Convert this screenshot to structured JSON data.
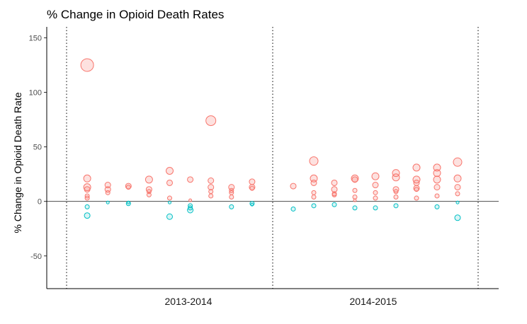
{
  "chart_data": {
    "type": "scatter",
    "title": "% Change in Opioid Death Rates",
    "xlabel": "",
    "ylabel": "% Change in Opioid Death Rate",
    "ylim": [
      -80,
      160
    ],
    "yticks": [
      -50,
      0,
      50,
      100,
      150
    ],
    "grid": false,
    "categories": [
      "2013-2014",
      "2014-2015"
    ],
    "colors": {
      "increase": "#F8766D",
      "decrease": "#00BFC4"
    },
    "points": [
      {
        "g": 0,
        "x": 1,
        "y": 125,
        "s": 9
      },
      {
        "g": 0,
        "x": 1,
        "y": 21,
        "s": 5
      },
      {
        "g": 0,
        "x": 1,
        "y": 13,
        "s": 5
      },
      {
        "g": 0,
        "x": 1,
        "y": 11,
        "s": 4
      },
      {
        "g": 0,
        "x": 1,
        "y": 5,
        "s": 3
      },
      {
        "g": 0,
        "x": 1,
        "y": 3,
        "s": 3
      },
      {
        "g": 0,
        "x": 1,
        "y": -5,
        "s": 3
      },
      {
        "g": 0,
        "x": 1,
        "y": -13,
        "s": 4
      },
      {
        "g": 0,
        "x": 2,
        "y": 15,
        "s": 4
      },
      {
        "g": 0,
        "x": 2,
        "y": 11,
        "s": 4
      },
      {
        "g": 0,
        "x": 2,
        "y": 8,
        "s": 3
      },
      {
        "g": 0,
        "x": 2,
        "y": -1,
        "s": 2
      },
      {
        "g": 0,
        "x": 3,
        "y": 14,
        "s": 4
      },
      {
        "g": 0,
        "x": 3,
        "y": 13,
        "s": 3
      },
      {
        "g": 0,
        "x": 3,
        "y": -1,
        "s": 2
      },
      {
        "g": 0,
        "x": 3,
        "y": -2,
        "s": 3
      },
      {
        "g": 0,
        "x": 4,
        "y": 20,
        "s": 5
      },
      {
        "g": 0,
        "x": 4,
        "y": 11,
        "s": 4
      },
      {
        "g": 0,
        "x": 4,
        "y": 9,
        "s": 3
      },
      {
        "g": 0,
        "x": 4,
        "y": 6,
        "s": 3
      },
      {
        "g": 0,
        "x": 5,
        "y": 28,
        "s": 5
      },
      {
        "g": 0,
        "x": 5,
        "y": 17,
        "s": 4
      },
      {
        "g": 0,
        "x": 5,
        "y": 3,
        "s": 3
      },
      {
        "g": 0,
        "x": 5,
        "y": -1,
        "s": 2
      },
      {
        "g": 0,
        "x": 5,
        "y": -14,
        "s": 4
      },
      {
        "g": 0,
        "x": 6,
        "y": 20,
        "s": 4
      },
      {
        "g": 0,
        "x": 6,
        "y": 1,
        "s": 2
      },
      {
        "g": 0,
        "x": 6,
        "y": -4,
        "s": 3
      },
      {
        "g": 0,
        "x": 6,
        "y": -6,
        "s": 3
      },
      {
        "g": 0,
        "x": 6,
        "y": -8,
        "s": 4
      },
      {
        "g": 0,
        "x": 7,
        "y": 74,
        "s": 7
      },
      {
        "g": 0,
        "x": 7,
        "y": 19,
        "s": 4
      },
      {
        "g": 0,
        "x": 7,
        "y": 13,
        "s": 4
      },
      {
        "g": 0,
        "x": 7,
        "y": 9,
        "s": 3
      },
      {
        "g": 0,
        "x": 7,
        "y": 5,
        "s": 3
      },
      {
        "g": 0,
        "x": 8,
        "y": 13,
        "s": 4
      },
      {
        "g": 0,
        "x": 8,
        "y": 10,
        "s": 3
      },
      {
        "g": 0,
        "x": 8,
        "y": 8,
        "s": 3
      },
      {
        "g": 0,
        "x": 8,
        "y": 4,
        "s": 3
      },
      {
        "g": 0,
        "x": 8,
        "y": -5,
        "s": 3
      },
      {
        "g": 0,
        "x": 9,
        "y": 18,
        "s": 4
      },
      {
        "g": 0,
        "x": 9,
        "y": 13,
        "s": 4
      },
      {
        "g": 0,
        "x": 9,
        "y": 12,
        "s": 3
      },
      {
        "g": 0,
        "x": 9,
        "y": -2,
        "s": 3
      },
      {
        "g": 0,
        "x": 9,
        "y": -3,
        "s": 2
      },
      {
        "g": 1,
        "x": 1,
        "y": 14,
        "s": 4
      },
      {
        "g": 1,
        "x": 1,
        "y": -7,
        "s": 3
      },
      {
        "g": 1,
        "x": 2,
        "y": 37,
        "s": 6
      },
      {
        "g": 1,
        "x": 2,
        "y": 21,
        "s": 5
      },
      {
        "g": 1,
        "x": 2,
        "y": 17,
        "s": 4
      },
      {
        "g": 1,
        "x": 2,
        "y": 8,
        "s": 3
      },
      {
        "g": 1,
        "x": 2,
        "y": 4,
        "s": 3
      },
      {
        "g": 1,
        "x": 2,
        "y": -4,
        "s": 3
      },
      {
        "g": 1,
        "x": 3,
        "y": 17,
        "s": 4
      },
      {
        "g": 1,
        "x": 3,
        "y": 11,
        "s": 4
      },
      {
        "g": 1,
        "x": 3,
        "y": 7,
        "s": 3
      },
      {
        "g": 1,
        "x": 3,
        "y": 6,
        "s": 3
      },
      {
        "g": 1,
        "x": 3,
        "y": -3,
        "s": 3
      },
      {
        "g": 1,
        "x": 4,
        "y": 21,
        "s": 5
      },
      {
        "g": 1,
        "x": 4,
        "y": 20,
        "s": 4
      },
      {
        "g": 1,
        "x": 4,
        "y": 10,
        "s": 3
      },
      {
        "g": 1,
        "x": 4,
        "y": 4,
        "s": 3
      },
      {
        "g": 1,
        "x": 4,
        "y": 1,
        "s": 2
      },
      {
        "g": 1,
        "x": 4,
        "y": -6,
        "s": 3
      },
      {
        "g": 1,
        "x": 5,
        "y": 23,
        "s": 5
      },
      {
        "g": 1,
        "x": 5,
        "y": 15,
        "s": 4
      },
      {
        "g": 1,
        "x": 5,
        "y": 8,
        "s": 3
      },
      {
        "g": 1,
        "x": 5,
        "y": 3,
        "s": 3
      },
      {
        "g": 1,
        "x": 5,
        "y": -6,
        "s": 3
      },
      {
        "g": 1,
        "x": 6,
        "y": 26,
        "s": 5
      },
      {
        "g": 1,
        "x": 6,
        "y": 22,
        "s": 5
      },
      {
        "g": 1,
        "x": 6,
        "y": 11,
        "s": 4
      },
      {
        "g": 1,
        "x": 6,
        "y": 9,
        "s": 3
      },
      {
        "g": 1,
        "x": 6,
        "y": 4,
        "s": 3
      },
      {
        "g": 1,
        "x": 6,
        "y": -4,
        "s": 3
      },
      {
        "g": 1,
        "x": 7,
        "y": 31,
        "s": 5
      },
      {
        "g": 1,
        "x": 7,
        "y": 20,
        "s": 5
      },
      {
        "g": 1,
        "x": 7,
        "y": 17,
        "s": 4
      },
      {
        "g": 1,
        "x": 7,
        "y": 12,
        "s": 4
      },
      {
        "g": 1,
        "x": 7,
        "y": 11,
        "s": 3
      },
      {
        "g": 1,
        "x": 7,
        "y": 3,
        "s": 3
      },
      {
        "g": 1,
        "x": 8,
        "y": 31,
        "s": 5
      },
      {
        "g": 1,
        "x": 8,
        "y": 26,
        "s": 5
      },
      {
        "g": 1,
        "x": 8,
        "y": 20,
        "s": 5
      },
      {
        "g": 1,
        "x": 8,
        "y": 13,
        "s": 4
      },
      {
        "g": 1,
        "x": 8,
        "y": 5,
        "s": 3
      },
      {
        "g": 1,
        "x": 8,
        "y": -5,
        "s": 3
      },
      {
        "g": 1,
        "x": 9,
        "y": 36,
        "s": 6
      },
      {
        "g": 1,
        "x": 9,
        "y": 21,
        "s": 5
      },
      {
        "g": 1,
        "x": 9,
        "y": 13,
        "s": 4
      },
      {
        "g": 1,
        "x": 9,
        "y": 7,
        "s": 3
      },
      {
        "g": 1,
        "x": 9,
        "y": -1,
        "s": 2
      },
      {
        "g": 1,
        "x": 9,
        "y": -15,
        "s": 4
      }
    ]
  }
}
